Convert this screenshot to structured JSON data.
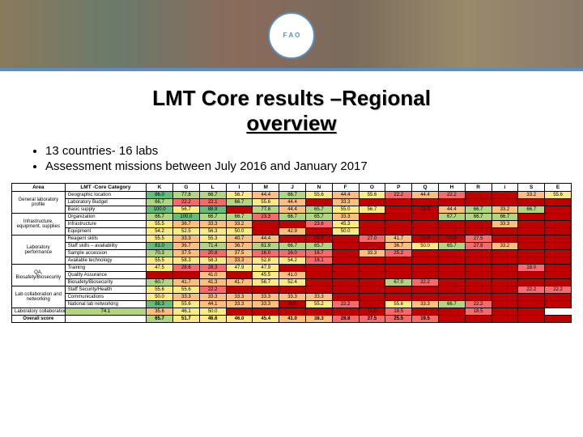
{
  "logo_text": "F A O",
  "title_line1": "LMT Core results –Regional",
  "title_line2": "overview",
  "bullets": [
    "13 countries- 16 labs",
    "Assessment missions between July 2016 and January 2017"
  ],
  "table": {
    "headers": [
      "Area",
      "LMT -Core Category",
      "K",
      "G",
      "L",
      "I",
      "M",
      "J",
      "N",
      "F",
      "O",
      "P",
      "Q",
      "H",
      "R",
      "i",
      "S",
      "E"
    ],
    "rows": [
      {
        "area": "General laboratory profile",
        "area_span": 3,
        "cat": "Geographic location",
        "v": [
          86.0,
          77.8,
          66.7,
          56.7,
          44.4,
          66.7,
          55.6,
          44.4,
          55.6,
          22.2,
          44.4,
          22.2,
          null,
          null,
          33.2,
          55.6
        ]
      },
      {
        "cat": "Laboratory Budget",
        "v": [
          66.7,
          22.2,
          22.1,
          66.7,
          55.6,
          44.4,
          null,
          33.3,
          null,
          null,
          null,
          null,
          null,
          null,
          null,
          null
        ]
      },
      {
        "cat": "Basic supply",
        "v": [
          100,
          56.7,
          88.9,
          null,
          77.8,
          44.4,
          65.7,
          55,
          56.7,
          null,
          11,
          44.4,
          66.7,
          33.2,
          66.7,
          null
        ]
      },
      {
        "area": "Infrastructure, equipment, supplies",
        "area_span": 3,
        "cat": "Organization",
        "v": [
          66.7,
          100.0,
          66.7,
          66.7,
          23.3,
          66.7,
          65.7,
          33.3,
          null,
          null,
          null,
          67.7,
          66.7,
          66.7,
          null,
          null
        ]
      },
      {
        "cat": "Infrastructure",
        "v": [
          55.5,
          36.7,
          33.3,
          33.2,
          null,
          null,
          23.6,
          45.3,
          null,
          null,
          null,
          null,
          null,
          33.3,
          null,
          null
        ]
      },
      {
        "cat": "Equipment",
        "v": [
          54.2,
          52.5,
          56.3,
          50.0,
          null,
          42.9,
          null,
          50.0,
          null,
          null,
          null,
          null,
          null,
          null,
          null,
          null
        ]
      },
      {
        "area": "Laboratory performance",
        "area_span": 4,
        "cat": "Reagent skills",
        "v": [
          55.5,
          33.3,
          55.3,
          40.7,
          44.4,
          null,
          13.3,
          null,
          27.0,
          41.7,
          11,
          10,
          27.5,
          null,
          null,
          null
        ]
      },
      {
        "cat": "Staff skills – availability",
        "v": [
          81.0,
          36.7,
          71.4,
          36.7,
          61.9,
          66.7,
          65.7,
          null,
          null,
          36.7,
          50.0,
          65.7,
          27.8,
          33.2,
          null,
          null
        ]
      },
      {
        "cat": "Sample accession",
        "v": [
          70.3,
          37.5,
          20.8,
          37.5,
          16,
          16,
          16.7,
          null,
          33.3,
          25.2,
          null,
          null,
          null,
          null,
          null,
          null
        ]
      },
      {
        "cat": "Available technology",
        "v": [
          55.5,
          58.3,
          58.3,
          33.3,
          52.8,
          54.2,
          16.1,
          null,
          null,
          null,
          null,
          null,
          null,
          null,
          null,
          null
        ]
      },
      {
        "area": "QA, Biosafety/Biosecurity",
        "area_span": 3,
        "cat": "Training",
        "v": [
          47.5,
          28.6,
          28.3,
          47.9,
          47.9,
          null,
          null,
          null,
          null,
          null,
          null,
          null,
          null,
          null,
          18,
          null
        ]
      },
      {
        "cat": "Quality Assurance",
        "v": [
          null,
          null,
          41,
          null,
          45.5,
          41,
          null,
          null,
          null,
          null,
          null,
          null,
          null,
          null,
          null,
          null
        ]
      },
      {
        "cat": "Biosafety/Biosecurity",
        "v": [
          60.7,
          41.7,
          41.3,
          41.7,
          56.7,
          52.4,
          null,
          null,
          null,
          67,
          22.2,
          null,
          null,
          null,
          null,
          null
        ]
      },
      {
        "area": "Lab collaboration and networking",
        "area_span": 3,
        "cat": "Staff Security/Health",
        "v": [
          55.6,
          55.6,
          22.2,
          null,
          null,
          null,
          null,
          null,
          null,
          null,
          null,
          null,
          null,
          null,
          22.2,
          22.2
        ]
      },
      {
        "cat": "Communications",
        "v": [
          50.0,
          33.3,
          33.3,
          33.3,
          33.3,
          33.3,
          33.3,
          null,
          null,
          null,
          null,
          null,
          null,
          null,
          null,
          null
        ]
      },
      {
        "cat": "National lab networking",
        "v": [
          88.3,
          55.6,
          44.1,
          33.3,
          33.3,
          "N/A",
          55.2,
          22.2,
          null,
          55.6,
          33.3,
          66.7,
          22.2,
          null,
          null,
          null
        ]
      },
      {
        "cat": "Laboratory collaboration",
        "v": [
          74.1,
          35.6,
          46.1,
          50.0,
          null,
          null,
          null,
          null,
          null,
          11,
          18.5,
          null,
          null,
          18.5,
          null,
          null
        ]
      }
    ],
    "overall": {
      "label": "Overall score",
      "v": [
        65.7,
        51.7,
        46.6,
        46.0,
        45.4,
        41.0,
        38.3,
        28.8,
        27.5,
        25.5,
        19.5,
        null,
        null,
        null,
        null,
        null
      ]
    }
  },
  "color_scale": {
    "high": "#63be7b",
    "mid": "#ffeb84",
    "low": "#f8696b",
    "deep": "#c00000",
    "na": "#ffffff"
  }
}
